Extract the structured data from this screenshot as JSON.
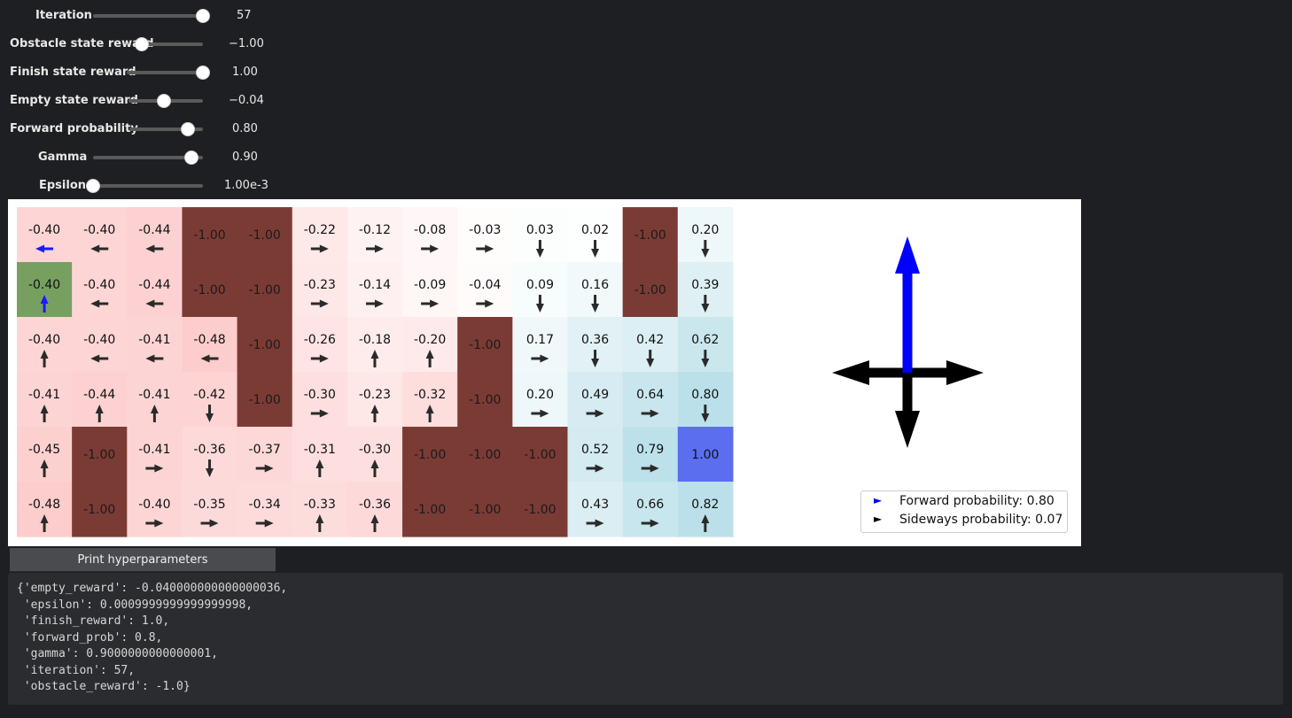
{
  "sliders": [
    {
      "label": "Iteration",
      "value": "57",
      "fraction": 1.0
    },
    {
      "label": "Obstacle state reward",
      "value": "−1.00",
      "fraction": 0.0
    },
    {
      "label": "Finish state reward",
      "value": "1.00",
      "fraction": 1.0
    },
    {
      "label": "Empty state reward",
      "value": "−0.04",
      "fraction": 0.48
    },
    {
      "label": "Forward probability",
      "value": "0.80",
      "fraction": 0.8
    },
    {
      "label": "Gamma",
      "value": "0.90",
      "fraction": 0.9
    },
    {
      "label": "Epsilon",
      "value": "1.00e-3",
      "fraction": 0.0
    }
  ],
  "grid": {
    "rows": 6,
    "cols": 13,
    "values": [
      [
        "-0.40",
        "-0.40",
        "-0.44",
        "-1.00",
        "-1.00",
        "-0.22",
        "-0.12",
        "-0.08",
        "-0.03",
        "0.03",
        "0.02",
        "-1.00",
        "0.20"
      ],
      [
        "-0.40",
        "-0.40",
        "-0.44",
        "-1.00",
        "-1.00",
        "-0.23",
        "-0.14",
        "-0.09",
        "-0.04",
        "0.09",
        "0.16",
        "-1.00",
        "0.39"
      ],
      [
        "-0.40",
        "-0.40",
        "-0.41",
        "-0.48",
        "-1.00",
        "-0.26",
        "-0.18",
        "-0.20",
        "-1.00",
        "0.17",
        "0.36",
        "0.42",
        "0.62"
      ],
      [
        "-0.41",
        "-0.44",
        "-0.41",
        "-0.42",
        "-1.00",
        "-0.30",
        "-0.23",
        "-0.32",
        "-1.00",
        "0.20",
        "0.49",
        "0.64",
        "0.80"
      ],
      [
        "-0.45",
        "-1.00",
        "-0.41",
        "-0.36",
        "-0.37",
        "-0.31",
        "-0.30",
        "-1.00",
        "-1.00",
        "-1.00",
        "0.52",
        "0.79",
        "1.00"
      ],
      [
        "-0.48",
        "-1.00",
        "-0.40",
        "-0.35",
        "-0.34",
        "-0.33",
        "-0.36",
        "-1.00",
        "-1.00",
        "-1.00",
        "0.43",
        "0.66",
        "0.82"
      ]
    ],
    "cell_type": [
      [
        "E",
        "E",
        "E",
        "O",
        "O",
        "E",
        "E",
        "E",
        "E",
        "E",
        "E",
        "O",
        "E"
      ],
      [
        "S",
        "E",
        "E",
        "O",
        "O",
        "E",
        "E",
        "E",
        "E",
        "E",
        "E",
        "O",
        "E"
      ],
      [
        "E",
        "E",
        "E",
        "E",
        "O",
        "E",
        "E",
        "E",
        "O",
        "E",
        "E",
        "E",
        "E"
      ],
      [
        "E",
        "E",
        "E",
        "E",
        "O",
        "E",
        "E",
        "E",
        "O",
        "E",
        "E",
        "E",
        "E"
      ],
      [
        "E",
        "O",
        "E",
        "E",
        "E",
        "E",
        "E",
        "O",
        "O",
        "O",
        "E",
        "E",
        "F"
      ],
      [
        "E",
        "O",
        "E",
        "E",
        "E",
        "E",
        "E",
        "O",
        "O",
        "O",
        "E",
        "E",
        "E"
      ]
    ],
    "policy": [
      [
        "L",
        "L",
        "L",
        "",
        "",
        "R",
        "R",
        "R",
        "R",
        "D",
        "D",
        "",
        "D"
      ],
      [
        "U",
        "L",
        "L",
        "",
        "",
        "R",
        "R",
        "R",
        "R",
        "D",
        "D",
        "",
        "D"
      ],
      [
        "U",
        "L",
        "L",
        "L",
        "",
        "R",
        "U",
        "U",
        "",
        "R",
        "D",
        "D",
        "D"
      ],
      [
        "U",
        "U",
        "U",
        "D",
        "",
        "R",
        "U",
        "U",
        "",
        "R",
        "R",
        "R",
        "D"
      ],
      [
        "U",
        "",
        "R",
        "D",
        "R",
        "U",
        "U",
        "",
        "",
        "",
        "R",
        "R",
        ""
      ],
      [
        "U",
        "",
        "R",
        "R",
        "R",
        "U",
        "U",
        "",
        "",
        "",
        "R",
        "R",
        "U"
      ]
    ],
    "agent": {
      "row": 1,
      "col": 0
    },
    "highlight_arrow": {
      "row": 0,
      "col": 0
    },
    "colors": {
      "obstacle": "#7b3b35",
      "start": "#77a060",
      "finish": "#5b6ef0",
      "negative": "#fa8c8c",
      "positive": "#a5d6e2",
      "agent_arrow": "#1a1aff",
      "arrow": "#2a2a2a"
    }
  },
  "compass": {
    "forward_icon": "arrow-up-icon",
    "forward_color": "#0000ff",
    "sideways_color": "#000000"
  },
  "legend": {
    "forward": "Forward probability: 0.80",
    "sideways": "Sideways probability: 0.07",
    "forward_marker": "►",
    "sideways_marker": "►"
  },
  "print_button": {
    "label": "Print hyperparameters"
  },
  "output": {
    "lines": [
      "{'empty_reward': -0.040000000000000036,",
      " 'epsilon': 0.0009999999999999998,",
      " 'finish_reward': 1.0,",
      " 'forward_prob': 0.8,",
      " 'gamma': 0.9000000000000001,",
      " 'iteration': 57,",
      " 'obstacle_reward': -1.0}"
    ]
  }
}
